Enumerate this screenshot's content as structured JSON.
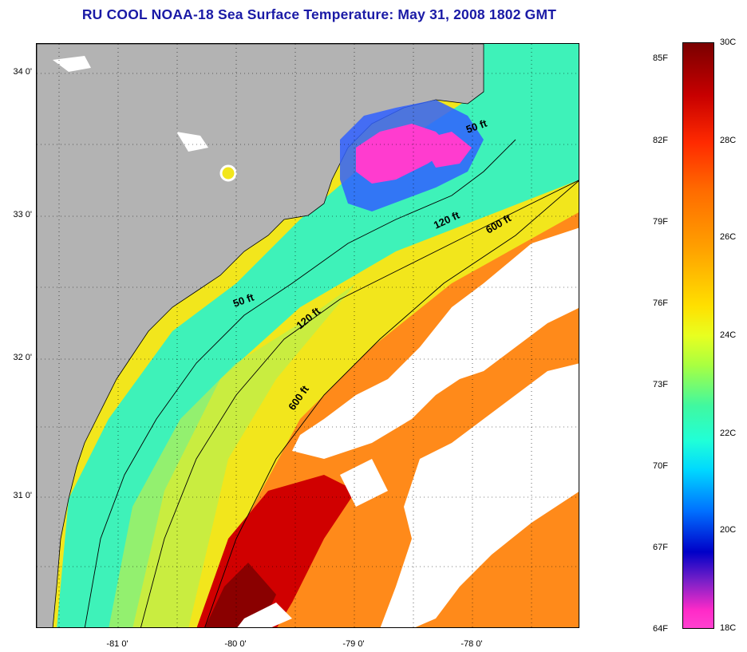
{
  "title": "RU COOL  NOAA-18  Sea Surface Temperature:  May 31, 2008 1802 GMT",
  "map": {
    "latitude_labels": [
      "34 0'",
      "33 0'",
      "32 0'",
      "31 0'"
    ],
    "longitude_labels": [
      "-81 0'",
      "-80 0'",
      "-79 0'",
      "-78 0'"
    ],
    "contour_labels": {
      "fifty_ft_upper": "50 ft",
      "fifty_ft_lower": "50 ft",
      "one_twenty_ft_upper": "120 ft",
      "one_twenty_ft_lower": "120 ft",
      "six_hundred_ft_upper": "600 ft",
      "six_hundred_ft_lower": "600 ft"
    },
    "colors": {
      "land": "#b3b3b3",
      "cloud": "#ffffff",
      "cold_water": "#ff3ccf",
      "cool_water": "#3ef2b9",
      "warm_water": "#f2e61c",
      "hot_water": "#ff6a1a",
      "hottest_water": "#c70000"
    }
  },
  "colorbar": {
    "celsius_labels": [
      "30C",
      "28C",
      "26C",
      "24C",
      "22C",
      "20C",
      "18C"
    ],
    "fahrenheit_labels": [
      "85F",
      "82F",
      "79F",
      "76F",
      "73F",
      "70F",
      "67F",
      "64F"
    ]
  }
}
